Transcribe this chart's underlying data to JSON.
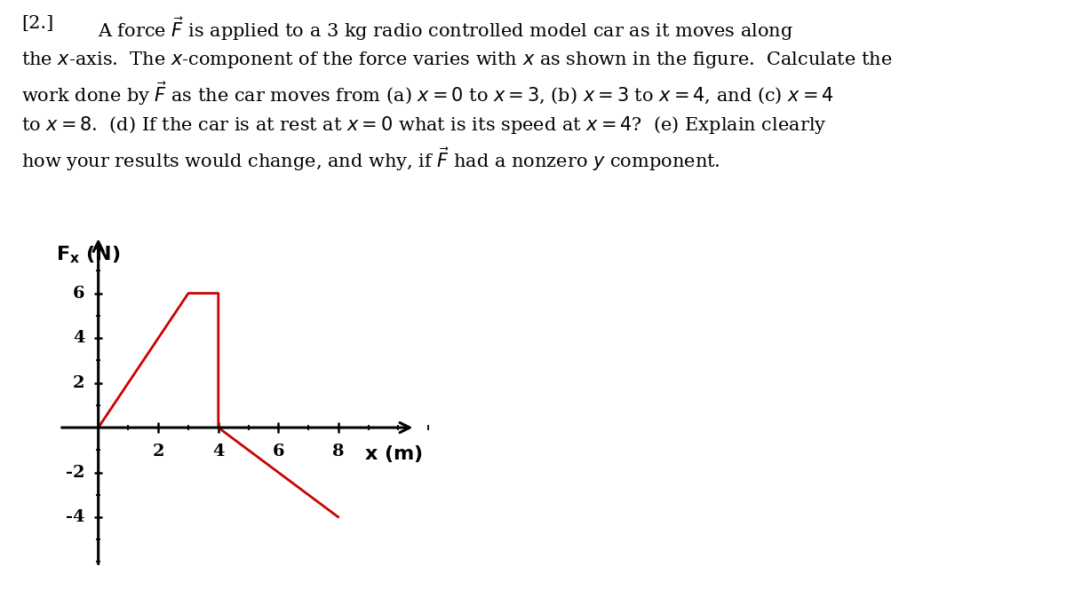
{
  "graph_x": [
    0,
    3,
    4,
    4,
    8
  ],
  "graph_y": [
    0,
    6,
    6,
    0,
    -4
  ],
  "line_color": "#cc0000",
  "line_width": 2.0,
  "axis_color": "#000000",
  "background_color": "#ffffff",
  "x_ticks": [
    2,
    4,
    6,
    8
  ],
  "y_ticks": [
    -4,
    -2,
    2,
    4,
    6
  ],
  "xlim": [
    -1.5,
    12
  ],
  "ylim": [
    -6.5,
    9.5
  ],
  "font_size_text": 15,
  "font_size_axis_label": 16,
  "font_size_tick": 14
}
